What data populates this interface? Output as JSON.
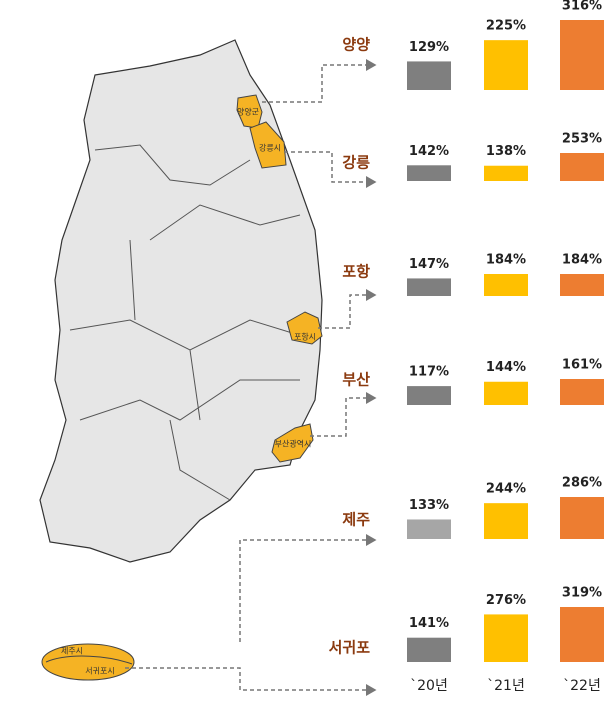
{
  "chart_data": [
    {
      "type": "bar",
      "title": "양양",
      "values": [
        129,
        225,
        316
      ],
      "value_labels": [
        "129%",
        "225%",
        "316%"
      ],
      "colors": [
        "#7f7f7f",
        "#ffc000",
        "#ed7d31"
      ]
    },
    {
      "type": "bar",
      "title": "강릉",
      "values": [
        142,
        138,
        253
      ],
      "value_labels": [
        "142%",
        "138%",
        "253%"
      ],
      "colors": [
        "#7f7f7f",
        "#ffc000",
        "#ed7d31"
      ]
    },
    {
      "type": "bar",
      "title": "포항",
      "values": [
        147,
        184,
        184
      ],
      "value_labels": [
        "147%",
        "184%",
        "184%"
      ],
      "colors": [
        "#7f7f7f",
        "#ffc000",
        "#ed7d31"
      ]
    },
    {
      "type": "bar",
      "title": "부산",
      "values": [
        117,
        144,
        161
      ],
      "value_labels": [
        "117%",
        "144%",
        "161%"
      ],
      "colors": [
        "#7f7f7f",
        "#ffc000",
        "#ed7d31"
      ]
    },
    {
      "type": "bar",
      "title": "제주",
      "values": [
        133,
        244,
        286
      ],
      "value_labels": [
        "133%",
        "244%",
        "286%"
      ],
      "colors": [
        "#a6a6a6",
        "#ffc000",
        "#ed7d31"
      ]
    },
    {
      "type": "bar",
      "title": "서귀포",
      "values": [
        141,
        276,
        319
      ],
      "value_labels": [
        "141%",
        "276%",
        "319%"
      ],
      "colors": [
        "#7f7f7f",
        "#ffc000",
        "#ed7d31"
      ],
      "categories": [
        "`20년",
        "`21년",
        "`22년"
      ]
    }
  ],
  "map": {
    "labels": [
      "양양군",
      "강릉시",
      "포항시",
      "부산광역시",
      "제주시",
      "서귀포시"
    ]
  }
}
